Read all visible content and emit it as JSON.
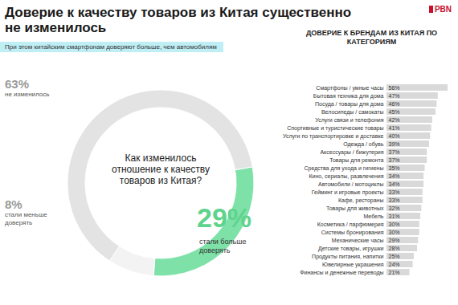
{
  "title": "Доверие к качеству товаров из Китая существенно не изменилось",
  "subtitle": "При этом китайским смартфонам доверяют больше, чем автомобилям",
  "logo": "PBN",
  "chart_data": [
    {
      "type": "pie",
      "title": "Как изменилось отношение к качеству товаров из Китая?",
      "categories": [
        "не изменилось",
        "стали меньше доверять",
        "стали больше доверять"
      ],
      "values": [
        63,
        8,
        29
      ],
      "value_labels": [
        "63%",
        "8%",
        "29%"
      ],
      "colors": [
        "#e3e3e3",
        "#f3f3f3",
        "#7ee2a8"
      ],
      "data_labels": true
    },
    {
      "type": "bar",
      "title": "ДОВЕРИЕ К БРЕНДАМ ИЗ КИТАЯ ПО КАТЕГОРИЯМ",
      "orientation": "horizontal",
      "categories": [
        "Смартфоны / умные часы",
        "Бытовая техника для дома",
        "Посуда / товары для дома",
        "Велосипеды / самокаты",
        "Услуги связи и телефония",
        "Спортивные и туристические товары",
        "Услуги по транспортировке и доставке",
        "Одежда / обувь",
        "Аксессуары / бижутерия",
        "Товары для ремонта",
        "Средства для ухода и гигиены",
        "Кино, сериалы, развлечения",
        "Автомобили / мотоциклы",
        "Гейминг и игровые проекты",
        "Кафе, рестораны",
        "Товары для животных",
        "Мебель",
        "Косметика / парфюмерия",
        "Системы бронирования",
        "Механические часы",
        "Детские товары, игрушки",
        "Продукты питания, напитки",
        "Ювелирные украшения",
        "Финансы и денежные переводы"
      ],
      "values": [
        56,
        47,
        46,
        45,
        42,
        41,
        40,
        39,
        37,
        37,
        35,
        34,
        34,
        33,
        33,
        32,
        31,
        30,
        30,
        29,
        28,
        25,
        24,
        21
      ],
      "value_labels": [
        "56%",
        "47%",
        "46%",
        "45%",
        "42%",
        "41%",
        "40%",
        "39%",
        "37%",
        "37%",
        "35%",
        "34%",
        "34%",
        "33%",
        "33%",
        "32%",
        "31%",
        "30%",
        "30%",
        "29%",
        "28%",
        "25%",
        "24%",
        "21%"
      ],
      "color": "#d9d9d9",
      "xlim": [
        0,
        56
      ],
      "data_labels": true,
      "tick_labels": "y"
    }
  ]
}
